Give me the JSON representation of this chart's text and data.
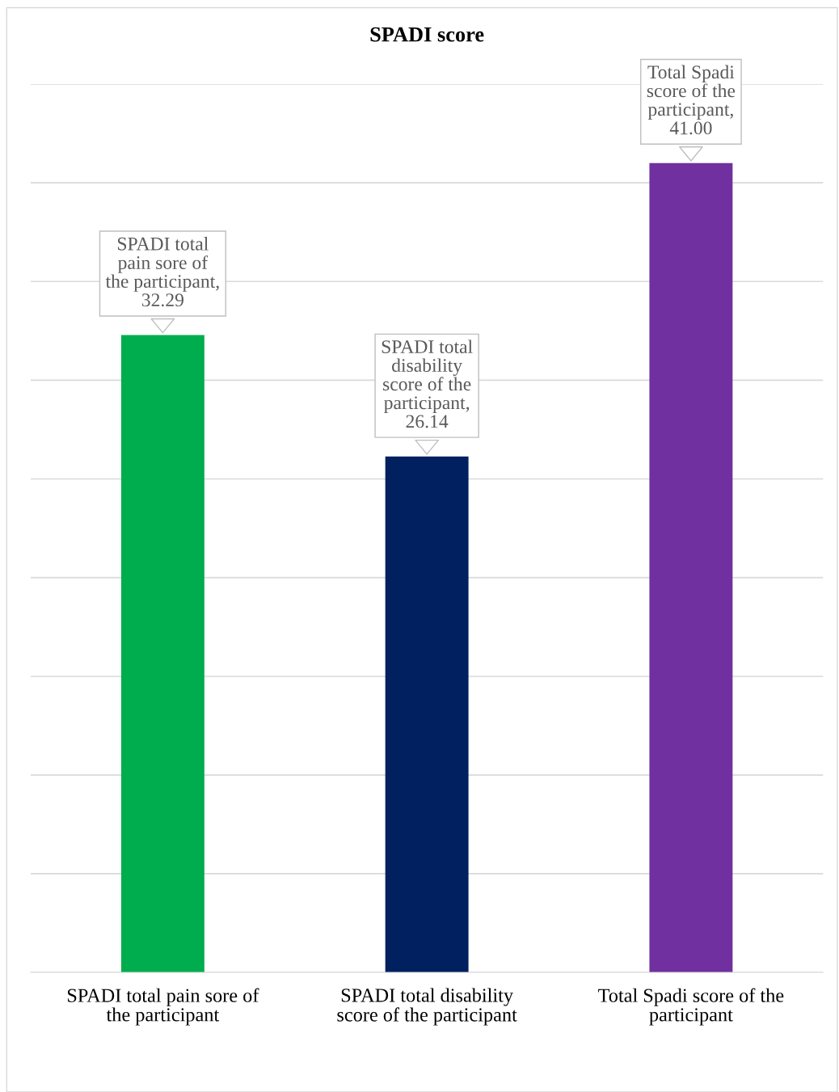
{
  "chart_data": {
    "type": "bar",
    "title": "SPADI score",
    "categories": [
      "SPADI total pain sore of the participant",
      "SPADI total disability score of the participant",
      "Total Spadi score of the participant"
    ],
    "values": [
      32.29,
      26.14,
      41.0
    ],
    "colors": [
      "#00ad4e",
      "#002060",
      "#7030a0"
    ],
    "value_labels": [
      "SPADI total\npain sore of\nthe participant,\n32.29",
      "SPADI total\ndisability\nscore of the\nparticipant,\n26.14",
      "Total Spadi\nscore of the\nparticipant,\n41.00"
    ],
    "ylim": [
      0,
      45
    ],
    "yticks": [
      {
        "value": 0,
        "label": null
      },
      {
        "value": 5,
        "label": null
      },
      {
        "value": 10,
        "label": null
      },
      {
        "value": 15,
        "label": null
      },
      {
        "value": 20,
        "label": null
      },
      {
        "value": 25,
        "label": null
      },
      {
        "value": 30,
        "label": null
      },
      {
        "value": 35,
        "label": null
      },
      {
        "value": 40,
        "label": null
      },
      {
        "value": 45,
        "label": null
      }
    ],
    "grid": "y",
    "tick_labels": "x",
    "legend": false
  }
}
